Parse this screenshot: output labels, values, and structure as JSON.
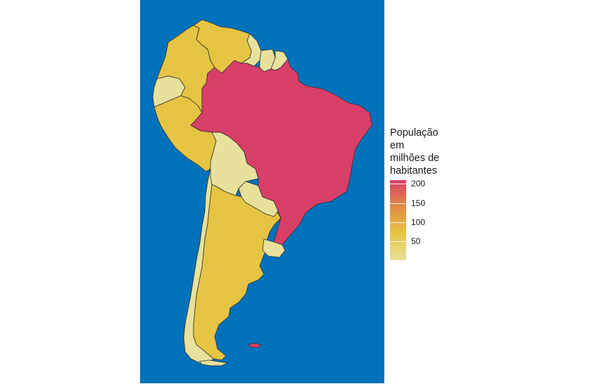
{
  "legend": {
    "title_lines": [
      "População",
      "em",
      "milhões de",
      "habitantes"
    ],
    "ticks": [
      {
        "value": 200,
        "label": "200"
      },
      {
        "value": 150,
        "label": "150"
      },
      {
        "value": 100,
        "label": "100"
      },
      {
        "value": 50,
        "label": "50"
      }
    ],
    "min_value": 0,
    "max_value": 210,
    "gradient": [
      "#e8e19c",
      "#e6c443",
      "#e38c45",
      "#d73f68"
    ]
  },
  "colors": {
    "ocean": "#0072bc",
    "border": "#2e2e2e",
    "brazil": "#d73f68",
    "mid_population": "#e6c443",
    "low_population": "#e8e19c"
  },
  "regions": [
    {
      "id": "brazil",
      "fill": "brazil"
    },
    {
      "id": "argentina",
      "fill": "mid_population"
    },
    {
      "id": "colombia",
      "fill": "mid_population"
    },
    {
      "id": "venezuela",
      "fill": "mid_population"
    },
    {
      "id": "peru",
      "fill": "mid_population"
    },
    {
      "id": "chile",
      "fill": "low_population"
    },
    {
      "id": "ecuador",
      "fill": "low_population"
    },
    {
      "id": "bolivia",
      "fill": "low_population"
    },
    {
      "id": "paraguay",
      "fill": "low_population"
    },
    {
      "id": "uruguay",
      "fill": "low_population"
    },
    {
      "id": "guyana",
      "fill": "low_population"
    },
    {
      "id": "suriname",
      "fill": "low_population"
    },
    {
      "id": "french-guiana",
      "fill": "low_population"
    },
    {
      "id": "falklands",
      "fill": "brazil"
    }
  ]
}
